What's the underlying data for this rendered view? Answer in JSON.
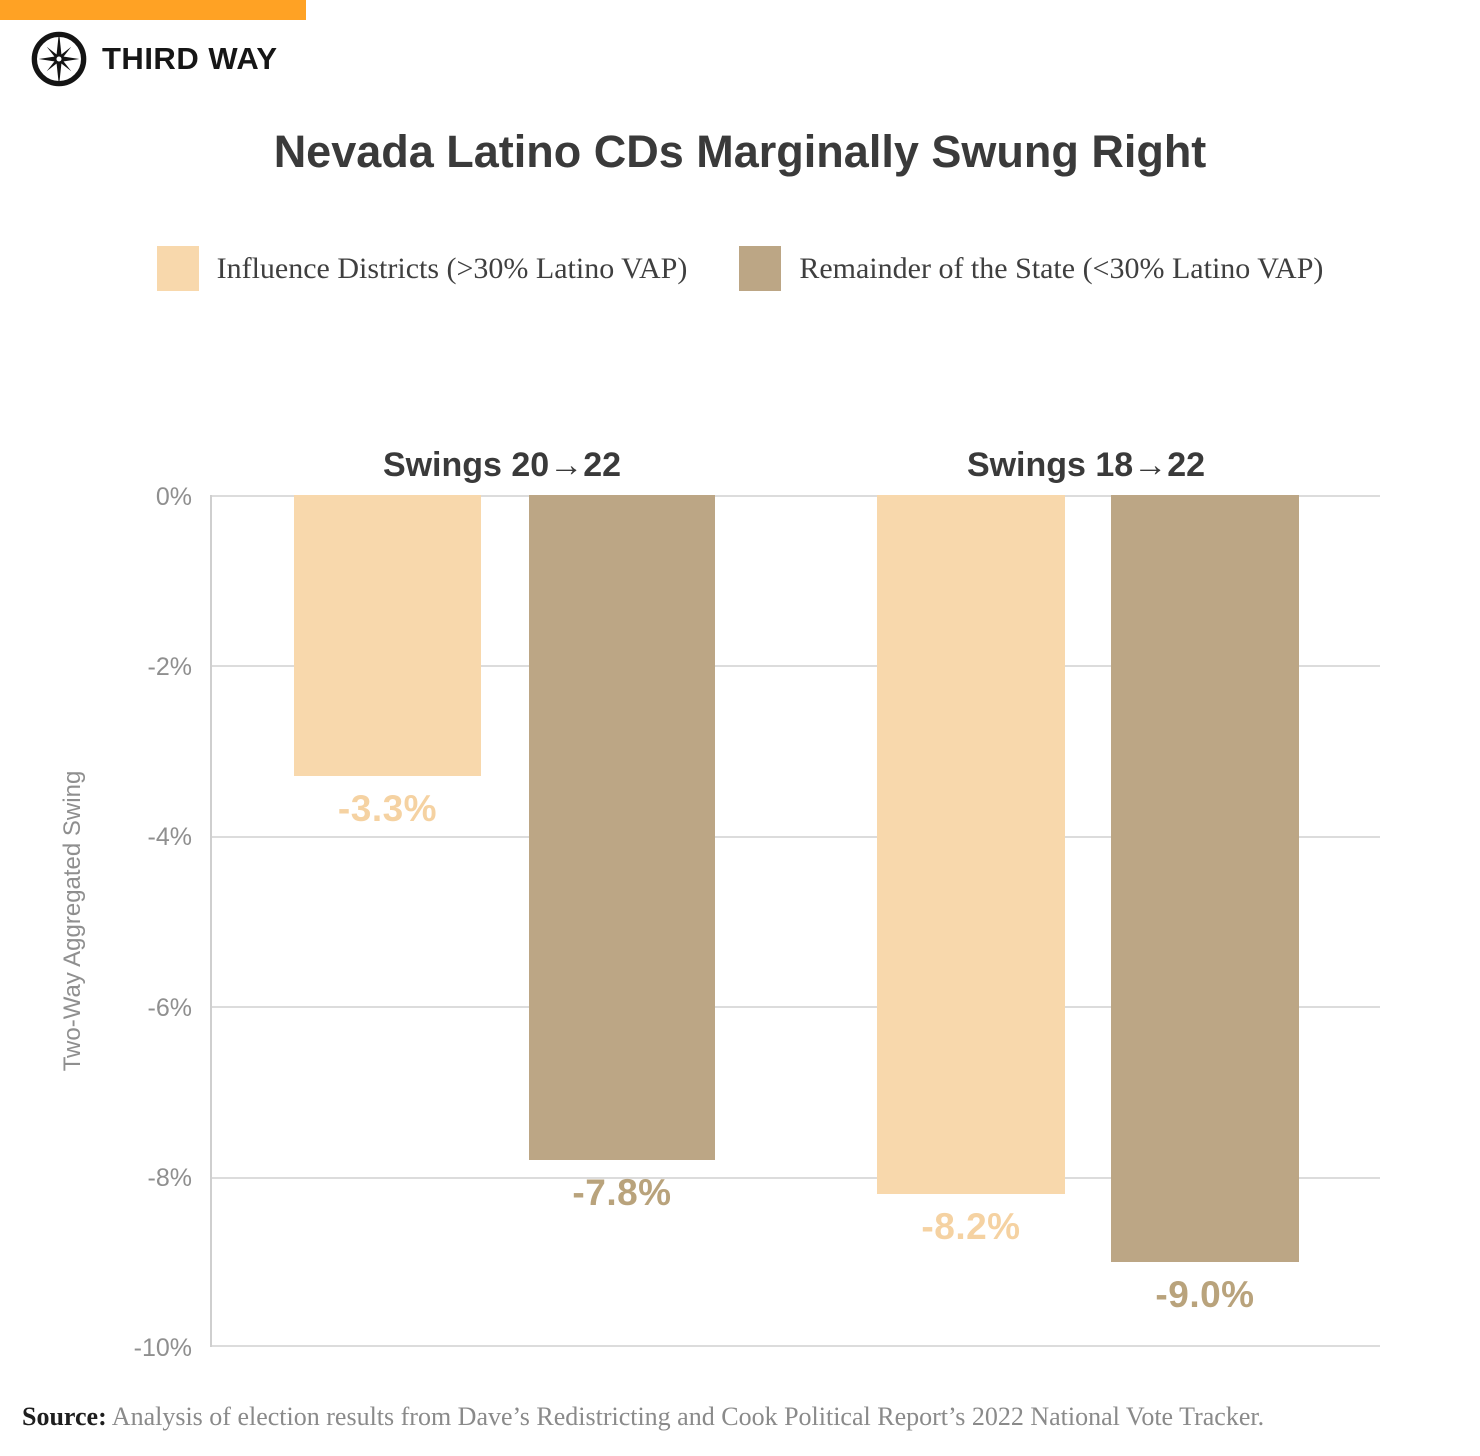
{
  "brand": {
    "wordmark": "THIRD WAY",
    "accent_color": "#FFA224"
  },
  "title": "Nevada Latino CDs Marginally Swung Right",
  "legend": [
    {
      "label": "Influence Districts (>30% Latino VAP)",
      "color": "#F8D8AC"
    },
    {
      "label": "Remainder of the State (<30% Latino VAP)",
      "color": "#BCA685"
    }
  ],
  "source": {
    "label": "Source:",
    "text": " Analysis of election results from Dave’s Redistricting and Cook Political Report’s 2022 National Vote Tracker."
  },
  "chart_data": {
    "type": "bar",
    "title": "Nevada Latino CDs Marginally Swung Right",
    "categories": [
      "Swings 20→22",
      "Swings 18→22"
    ],
    "series": [
      {
        "name": "Influence Districts (>30% Latino VAP)",
        "color": "#F8D8AC",
        "label_color": "#F5D2A2",
        "values": [
          -3.3,
          -8.2
        ],
        "labels": [
          "-3.3%",
          "-8.2%"
        ]
      },
      {
        "name": "Remainder of the State (<30% Latino VAP)",
        "color": "#BCA685",
        "label_color": "#B9A37C",
        "values": [
          -7.8,
          -9.0
        ],
        "labels": [
          "-7.8%",
          "-9.0%"
        ]
      }
    ],
    "ylabel": "Two-Way Aggregated Swing",
    "ylim": [
      -10,
      0
    ],
    "yticks": [
      "0%",
      "-2%",
      "-4%",
      "-6%",
      "-8%",
      "-10%"
    ],
    "grid": true,
    "legend_position": "top"
  }
}
